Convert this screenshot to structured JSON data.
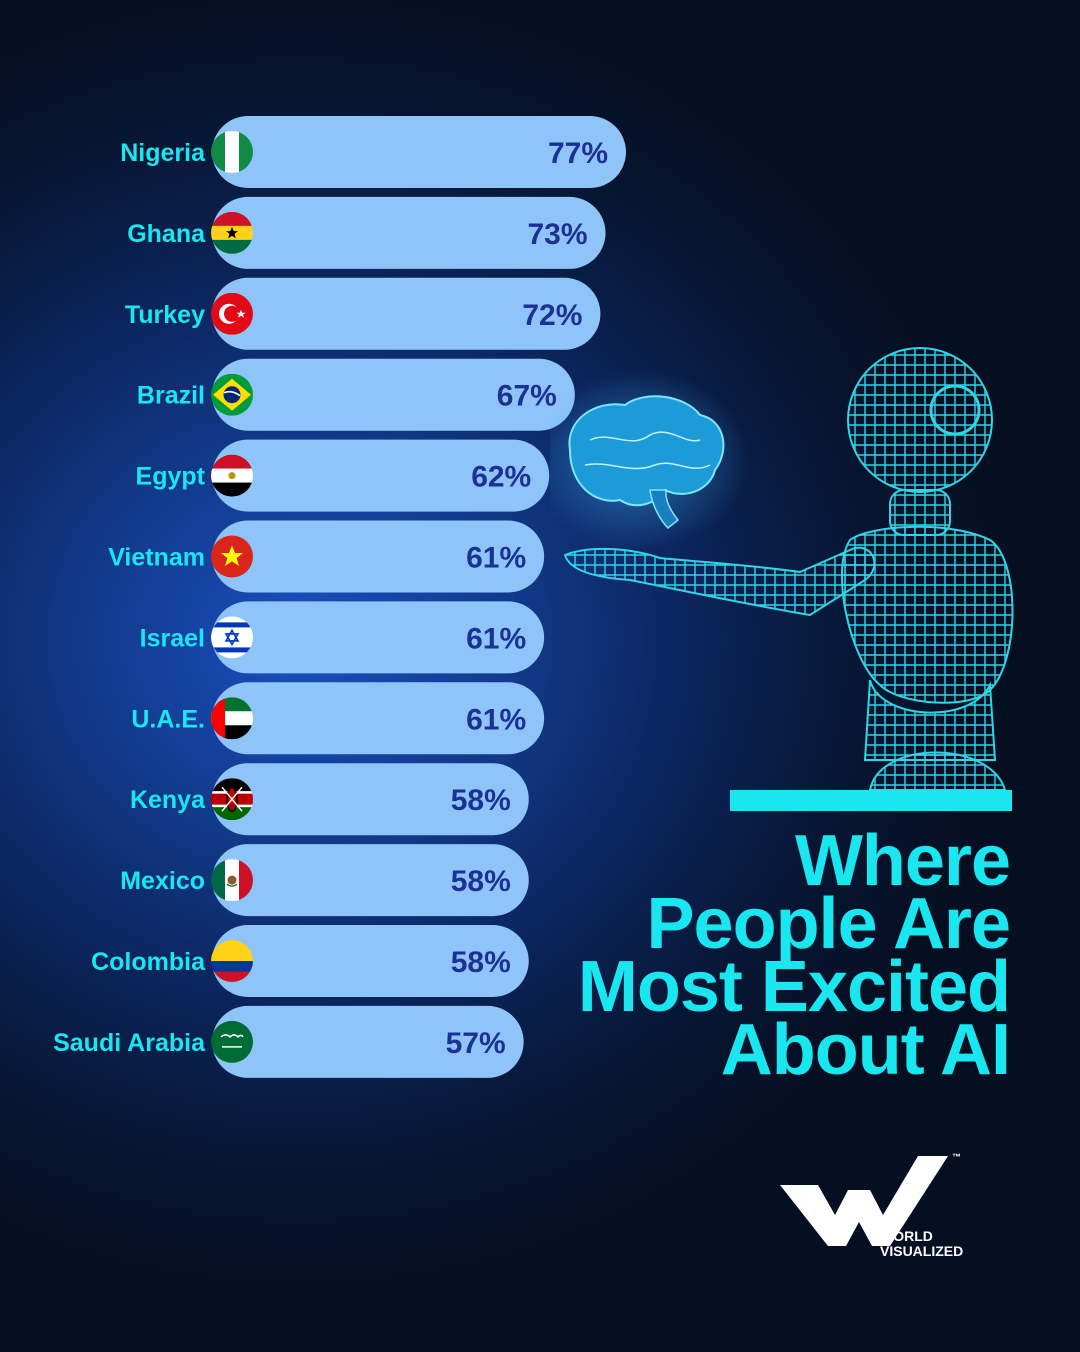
{
  "title": {
    "lines": [
      "Where",
      "People Are",
      "Most Excited",
      "About AI"
    ]
  },
  "brand": {
    "name_line1": "WORLD",
    "name_line2": "VISUALIZED",
    "trademark": "™"
  },
  "colors": {
    "bar": "#8ec4f7",
    "label": "#19e6ee",
    "value": "#1c3194",
    "accent": "#19e6ee",
    "logo": "#ffffff"
  },
  "chart_data": {
    "type": "bar",
    "orientation": "horizontal",
    "categories": [
      "Nigeria",
      "Ghana",
      "Turkey",
      "Brazil",
      "Egypt",
      "Vietnam",
      "Israel",
      "U.A.E.",
      "Kenya",
      "Mexico",
      "Colombia",
      "Saudi Arabia"
    ],
    "values": [
      77,
      73,
      72,
      67,
      62,
      61,
      61,
      61,
      58,
      58,
      58,
      57
    ],
    "value_labels": [
      "77%",
      "73%",
      "72%",
      "67%",
      "62%",
      "61%",
      "61%",
      "61%",
      "58%",
      "58%",
      "58%",
      "57%"
    ],
    "flag_icons": [
      "nigeria-flag-icon",
      "ghana-flag-icon",
      "turkey-flag-icon",
      "brazil-flag-icon",
      "egypt-flag-icon",
      "vietnam-flag-icon",
      "israel-flag-icon",
      "uae-flag-icon",
      "kenya-flag-icon",
      "mexico-flag-icon",
      "colombia-flag-icon",
      "saudi-arabia-flag-icon"
    ],
    "unit": "%",
    "xlabel": "",
    "ylabel": "",
    "grid": false,
    "legend": "none",
    "sorted": "descending"
  }
}
